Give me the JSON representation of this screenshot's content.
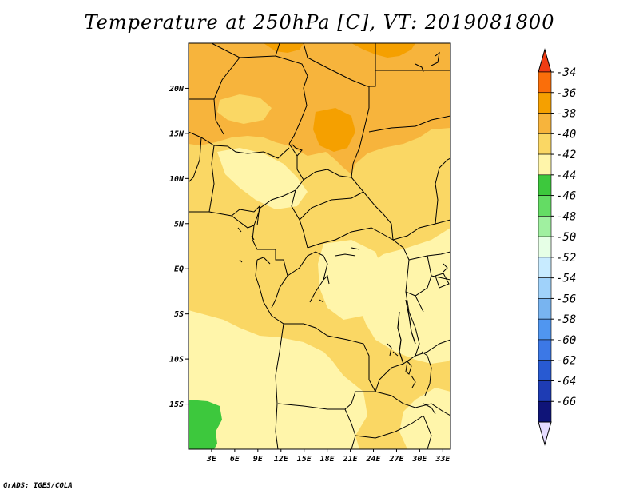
{
  "title": "Temperature at 250hPa [C], VT: 2019081800",
  "footer": "GrADS: IGES/COLA",
  "map": {
    "lon_range": [
      0,
      34
    ],
    "lat_range": [
      -20,
      25
    ],
    "lat_ticks": [
      {
        "value": 20,
        "label": "20N"
      },
      {
        "value": 15,
        "label": "15N"
      },
      {
        "value": 10,
        "label": "10N"
      },
      {
        "value": 5,
        "label": "5N"
      },
      {
        "value": 0,
        "label": "EQ"
      },
      {
        "value": -5,
        "label": "5S"
      },
      {
        "value": -10,
        "label": "10S"
      },
      {
        "value": -15,
        "label": "15S"
      }
    ],
    "lon_ticks": [
      {
        "value": 3,
        "label": "3E"
      },
      {
        "value": 6,
        "label": "6E"
      },
      {
        "value": 9,
        "label": "9E"
      },
      {
        "value": 12,
        "label": "12E"
      },
      {
        "value": 15,
        "label": "15E"
      },
      {
        "value": 18,
        "label": "18E"
      },
      {
        "value": 21,
        "label": "21E"
      },
      {
        "value": 24,
        "label": "24E"
      },
      {
        "value": 27,
        "label": "27E"
      },
      {
        "value": 30,
        "label": "30E"
      },
      {
        "value": 33,
        "label": "33E"
      }
    ]
  },
  "legend": {
    "labels": [
      "-34",
      "-36",
      "-38",
      "-40",
      "-42",
      "-44",
      "-46",
      "-48",
      "-50",
      "-52",
      "-54",
      "-56",
      "-58",
      "-60",
      "-62",
      "-64",
      "-66"
    ],
    "colors": [
      "#f03c14",
      "#fa6e0a",
      "#f5a000",
      "#f7b43c",
      "#fad764",
      "#fff5aa",
      "#3dc83d",
      "#64dc64",
      "#a0f0a0",
      "#e6ffe6",
      "#c8ebff",
      "#a0d2fa",
      "#78b4f0",
      "#5096f0",
      "#3c78e6",
      "#285ad2",
      "#1e3cb4",
      "#0f1478",
      "#e6dcff"
    ]
  }
}
